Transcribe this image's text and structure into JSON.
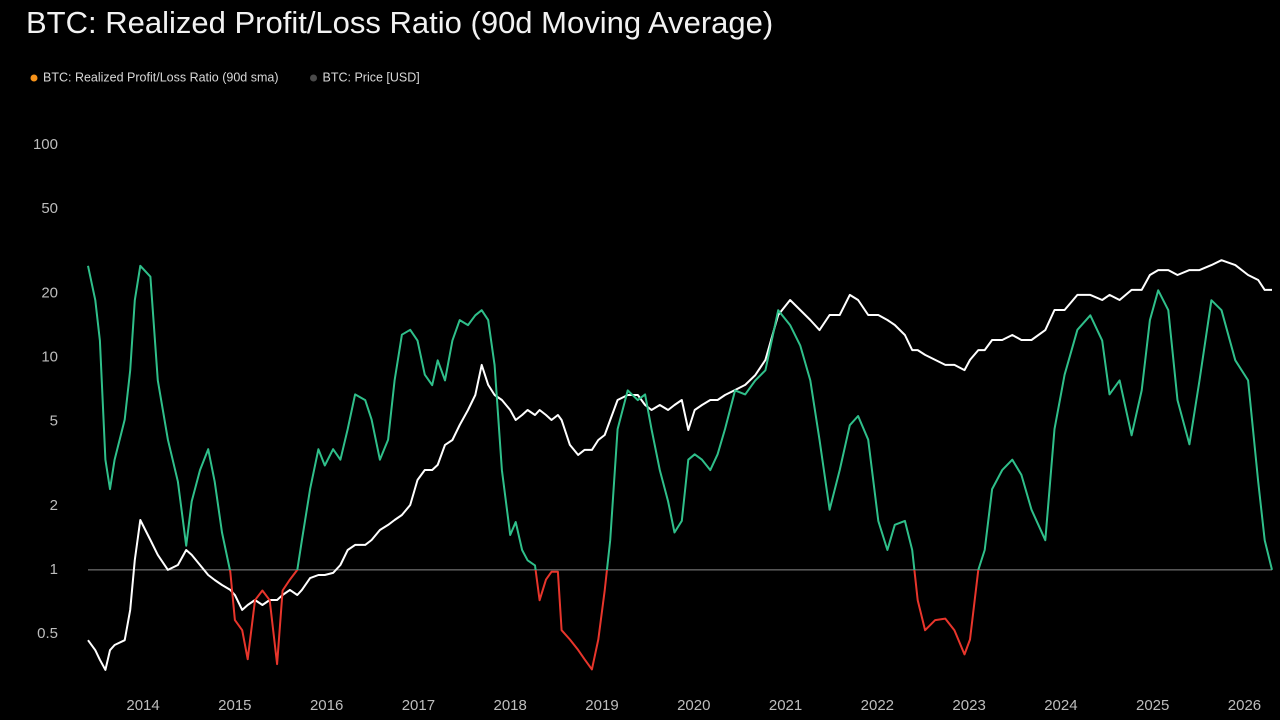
{
  "chart_data": {
    "type": "line",
    "title": "BTC: Realized Profit/Loss Ratio (90d Moving Average)",
    "log_scale": true,
    "grid": false,
    "legend": "top-left",
    "reference_line": 1,
    "reference_color": "#8a8a8a",
    "xlim": [
      2013.4,
      2026.3
    ],
    "xticks": [
      2014,
      2015,
      2016,
      2017,
      2018,
      2019,
      2020,
      2021,
      2022,
      2023,
      2024,
      2025,
      2026
    ],
    "ylim": [
      0.272,
      117.7
    ],
    "yticks": [
      100,
      50,
      20,
      10,
      5,
      2,
      1,
      0.5
    ],
    "y2lim": [
      46.8,
      1535800
    ],
    "x": [
      2013.4,
      2013.48,
      2013.53,
      2013.59,
      2013.64,
      2013.69,
      2013.8,
      2013.86,
      2013.91,
      2013.97,
      2014.08,
      2014.16,
      2014.27,
      2014.38,
      2014.47,
      2014.53,
      2014.62,
      2014.71,
      2014.78,
      2014.86,
      2014.95,
      2015.0,
      2015.08,
      2015.14,
      2015.22,
      2015.3,
      2015.38,
      2015.46,
      2015.52,
      2015.6,
      2015.68,
      2015.73,
      2015.82,
      2015.91,
      2015.98,
      2016.07,
      2016.15,
      2016.23,
      2016.31,
      2016.42,
      2016.49,
      2016.58,
      2016.67,
      2016.74,
      2016.82,
      2016.91,
      2016.99,
      2017.07,
      2017.15,
      2017.21,
      2017.29,
      2017.37,
      2017.45,
      2017.54,
      2017.62,
      2017.69,
      2017.76,
      2017.83,
      2017.91,
      2018.0,
      2018.06,
      2018.13,
      2018.19,
      2018.27,
      2018.32,
      2018.39,
      2018.45,
      2018.52,
      2018.56,
      2018.65,
      2018.74,
      2018.81,
      2018.89,
      2018.96,
      2019.03,
      2019.09,
      2019.17,
      2019.28,
      2019.39,
      2019.47,
      2019.54,
      2019.63,
      2019.72,
      2019.79,
      2019.87,
      2019.94,
      2020.01,
      2020.09,
      2020.18,
      2020.26,
      2020.34,
      2020.45,
      2020.56,
      2020.67,
      2020.78,
      2020.92,
      2021.05,
      2021.16,
      2021.27,
      2021.37,
      2021.48,
      2021.59,
      2021.7,
      2021.79,
      2021.9,
      2022.01,
      2022.11,
      2022.19,
      2022.3,
      2022.38,
      2022.44,
      2022.52,
      2022.63,
      2022.74,
      2022.84,
      2022.95,
      2023.01,
      2023.1,
      2023.17,
      2023.25,
      2023.36,
      2023.47,
      2023.57,
      2023.68,
      2023.83,
      2023.93,
      2024.04,
      2024.18,
      2024.32,
      2024.45,
      2024.53,
      2024.64,
      2024.77,
      2024.88,
      2024.97,
      2025.06,
      2025.17,
      2025.27,
      2025.4,
      2025.51,
      2025.64,
      2025.75,
      2025.9,
      2026.04,
      2026.15,
      2026.22,
      2026.3
    ],
    "series": [
      {
        "name": "BTC: Realized Profit/Loss Ratio (90d sma)",
        "color": "#2fbf8a",
        "below_color": "#e8352b",
        "legend_color": "#f7931a",
        "values": [
          27,
          18.6,
          12,
          3.3,
          2.4,
          3.3,
          5.1,
          8.7,
          18.6,
          27,
          24,
          7.8,
          4.1,
          2.6,
          1.3,
          2.1,
          2.95,
          3.7,
          2.6,
          1.5,
          0.98,
          0.58,
          0.52,
          0.38,
          0.72,
          0.8,
          0.72,
          0.36,
          0.8,
          0.9,
          1,
          1.38,
          2.4,
          3.7,
          3.1,
          3.7,
          3.3,
          4.6,
          6.7,
          6.3,
          5.1,
          3.3,
          4.1,
          7.8,
          12.8,
          13.5,
          12,
          8.3,
          7.4,
          9.7,
          7.8,
          12,
          15,
          14.2,
          15.8,
          16.7,
          15,
          9.2,
          2.95,
          1.46,
          1.68,
          1.24,
          1.11,
          1.05,
          0.72,
          0.9,
          0.98,
          0.98,
          0.52,
          0.47,
          0.42,
          0.38,
          0.34,
          0.47,
          0.8,
          1.38,
          4.6,
          7,
          6.3,
          6.7,
          4.6,
          2.95,
          2.1,
          1.5,
          1.7,
          3.3,
          3.5,
          3.3,
          2.95,
          3.5,
          4.6,
          7,
          6.7,
          7.8,
          8.7,
          16.7,
          14.2,
          11.4,
          7.8,
          4.1,
          1.92,
          2.95,
          4.8,
          5.3,
          4.1,
          1.7,
          1.24,
          1.63,
          1.7,
          1.24,
          0.72,
          0.52,
          0.58,
          0.59,
          0.52,
          0.4,
          0.47,
          1,
          1.24,
          2.4,
          2.95,
          3.3,
          2.8,
          1.92,
          1.38,
          4.6,
          8.3,
          13.5,
          15.8,
          12,
          6.7,
          7.8,
          4.3,
          7,
          15,
          20.7,
          16.7,
          6.3,
          3.9,
          7.8,
          18.6,
          16.7,
          9.7,
          7.8,
          2.6,
          1.38,
          1
        ]
      },
      {
        "name": "BTC: Price [USD]",
        "color": "#ffffff",
        "legend_color": "#4a4a4a",
        "axis": "y2",
        "values": [
          118,
          98,
          82,
          68,
          98,
          108,
          118,
          207,
          523,
          1100,
          759,
          575,
          435,
          477,
          630,
          575,
          477,
          396,
          361,
          329,
          300,
          273,
          207,
          227,
          249,
          227,
          249,
          249,
          273,
          300,
          273,
          300,
          374,
          396,
          396,
          412,
          477,
          630,
          692,
          692,
          759,
          913,
          1003,
          1100,
          1207,
          1453,
          2310,
          2783,
          2783,
          3056,
          4431,
          4860,
          6420,
          8480,
          11200,
          19600,
          13500,
          11200,
          10200,
          8480,
          7040,
          7730,
          8480,
          7730,
          8480,
          7730,
          7040,
          7730,
          7040,
          4431,
          3680,
          4040,
          4040,
          4860,
          5330,
          7040,
          10200,
          11200,
          11200,
          9310,
          8480,
          9310,
          8480,
          9310,
          10200,
          5850,
          8480,
          9310,
          10200,
          10200,
          11200,
          12300,
          13500,
          16200,
          21500,
          49500,
          65400,
          54300,
          45100,
          37400,
          49500,
          49500,
          71800,
          65400,
          49500,
          49500,
          45100,
          41100,
          34100,
          25800,
          25800,
          23600,
          21500,
          19600,
          19600,
          17800,
          21500,
          25800,
          25800,
          31100,
          31100,
          34100,
          31100,
          31100,
          37400,
          54300,
          54300,
          71800,
          71800,
          65400,
          71800,
          65400,
          78800,
          78800,
          104000,
          114000,
          114000,
          104000,
          114000,
          114000,
          125000,
          137000,
          125000,
          104000,
          94700,
          78800,
          78800
        ]
      }
    ]
  }
}
